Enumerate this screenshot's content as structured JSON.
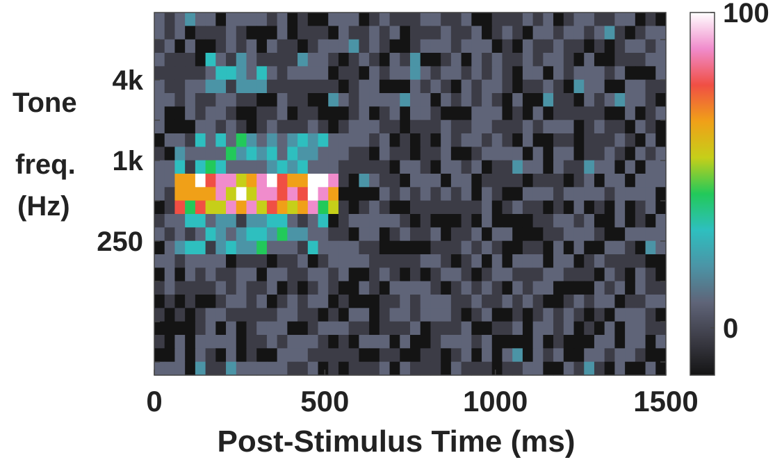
{
  "chart_data": {
    "type": "heatmap",
    "title": "",
    "xlabel": "Post-Stimulus Time (ms)",
    "ylabel_lines": [
      "Tone",
      "freq.",
      "(Hz)"
    ],
    "xlim": [
      0,
      1500
    ],
    "x_ticks": [
      0,
      500,
      1000,
      1500
    ],
    "x_tick_labels": [
      "0",
      "500",
      "1000",
      "1500"
    ],
    "y_tick_labels": [
      {
        "label": "4k",
        "row": 2
      },
      {
        "label": "1k",
        "row": 4
      },
      {
        "label": "250",
        "row": 6
      }
    ],
    "n_time_bins": 50,
    "n_freq_rows": 9,
    "time_bin_ms": 30,
    "colorbar": {
      "min": -15,
      "max": 100,
      "tick_values": [
        0,
        100
      ],
      "tick_labels": [
        "0",
        "100"
      ],
      "colors": [
        "#141414",
        "#3c3c46",
        "#5f6478",
        "#4b94a6",
        "#2ebfbf",
        "#22c95a",
        "#c6cf19",
        "#f0a018",
        "#f04f44",
        "#f08ccc",
        "#ffffff"
      ]
    },
    "response_bands": [
      {
        "row": 4,
        "t_start": 60,
        "t_end": 530,
        "level": 70
      },
      {
        "row": 3,
        "t_start": 60,
        "t_end": 520,
        "level": 20
      },
      {
        "row": 5,
        "t_start": 60,
        "t_end": 520,
        "level": 20
      },
      {
        "row": 1,
        "t_start": 150,
        "t_end": 450,
        "level": 12
      }
    ],
    "background_level": 0
  }
}
